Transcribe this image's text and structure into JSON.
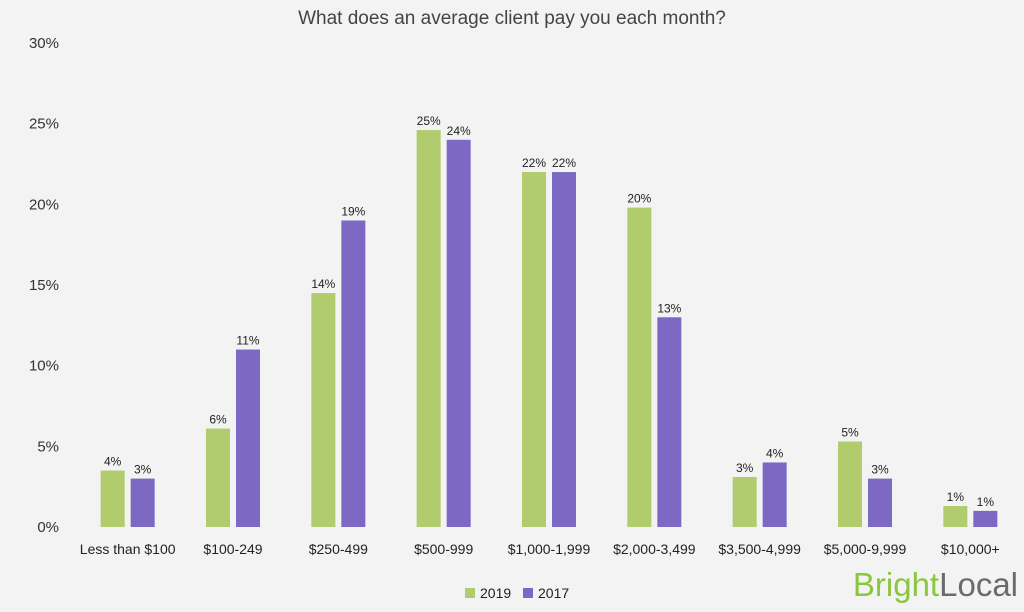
{
  "chart_data": {
    "type": "bar",
    "title": "What does an average client pay you each month?",
    "xlabel": "",
    "ylabel": "",
    "ylim": [
      0,
      30
    ],
    "yticks": [
      0,
      5,
      10,
      15,
      20,
      25,
      30
    ],
    "ytick_labels": [
      "0%",
      "5%",
      "10%",
      "15%",
      "20%",
      "25%",
      "30%"
    ],
    "categories": [
      "Less than $100",
      "$100-249",
      "$250-499",
      "$500-999",
      "$1,000-1,999",
      "$2,000-3,499",
      "$3,500-4,999",
      "$5,000-9,999",
      "$10,000+"
    ],
    "series": [
      {
        "name": "2019",
        "color": "#b0cc6c",
        "values": [
          3.5,
          6.1,
          14.5,
          24.6,
          22.0,
          19.8,
          3.1,
          5.3,
          1.3
        ],
        "labels": [
          "4%",
          "6%",
          "14%",
          "25%",
          "22%",
          "20%",
          "3%",
          "5%",
          "1%"
        ]
      },
      {
        "name": "2017",
        "color": "#7d69c3",
        "values": [
          3.0,
          11.0,
          19.0,
          24.0,
          22.0,
          13.0,
          4.0,
          3.0,
          1.0
        ],
        "labels": [
          "3%",
          "11%",
          "19%",
          "24%",
          "22%",
          "13%",
          "4%",
          "3%",
          "1%"
        ]
      }
    ],
    "grid": false,
    "legend_position": "bottom-center"
  },
  "branding": {
    "part1": "Bright",
    "part2": "Local",
    "color1": "#8cc63f",
    "color2": "#6b6b6b"
  }
}
